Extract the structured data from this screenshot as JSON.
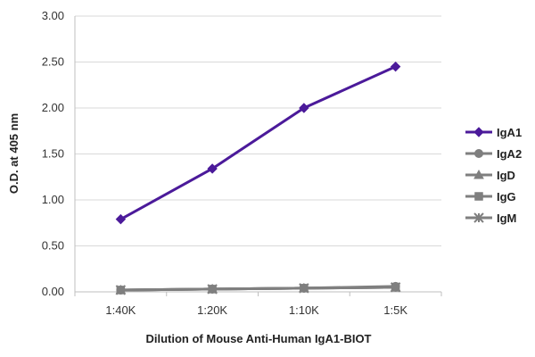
{
  "chart_data": {
    "type": "line",
    "title": "",
    "xlabel": "Dilution of Mouse Anti-Human IgA1-BIOT",
    "ylabel": "O.D. at 405 nm",
    "categories": [
      "1:40K",
      "1:20K",
      "1:10K",
      "1:5K"
    ],
    "y_ticks": [
      "0.00",
      "0.50",
      "1.00",
      "1.50",
      "2.00",
      "2.50",
      "3.00"
    ],
    "ylim": [
      0,
      3
    ],
    "grid": "horizontal",
    "legend_position": "right",
    "series": [
      {
        "name": "IgA1",
        "values": [
          0.79,
          1.34,
          2.0,
          2.45
        ],
        "color": "#4b1a9a",
        "marker": "diamond"
      },
      {
        "name": "IgA2",
        "values": [
          0.02,
          0.03,
          0.04,
          0.06
        ],
        "color": "#7f7f7f",
        "marker": "circle"
      },
      {
        "name": "IgD",
        "values": [
          0.02,
          0.03,
          0.04,
          0.05
        ],
        "color": "#7f7f7f",
        "marker": "triangle"
      },
      {
        "name": "IgG",
        "values": [
          0.02,
          0.03,
          0.04,
          0.05
        ],
        "color": "#7f7f7f",
        "marker": "square"
      },
      {
        "name": "IgM",
        "values": [
          0.02,
          0.03,
          0.04,
          0.05
        ],
        "color": "#7f7f7f",
        "marker": "star"
      }
    ]
  }
}
